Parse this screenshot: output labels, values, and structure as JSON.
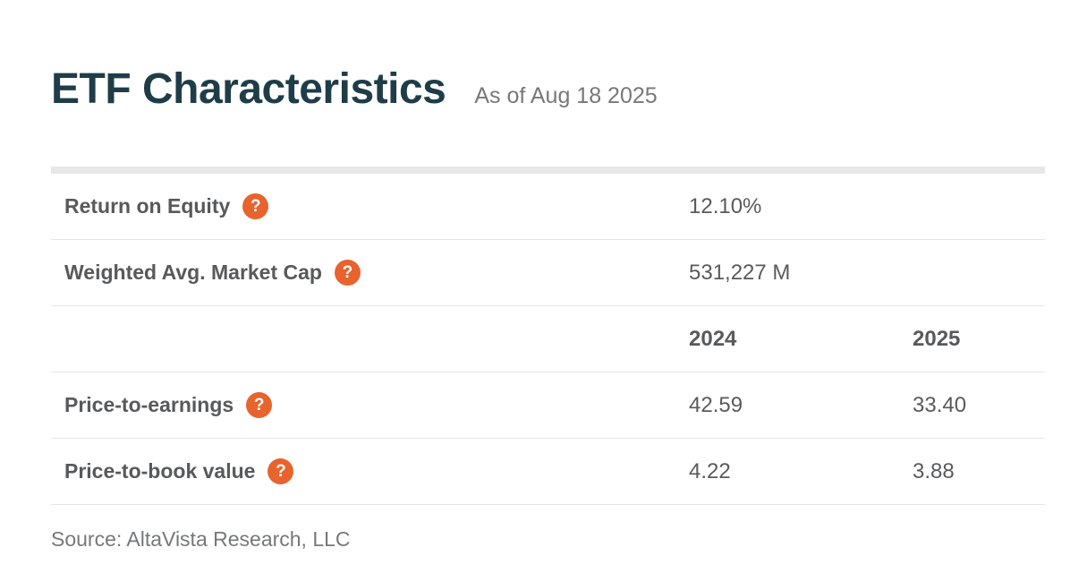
{
  "page": {
    "title": "ETF Characteristics",
    "as_of": "As of Aug 18 2025",
    "source": "Source: AltaVista Research, LLC"
  },
  "colors": {
    "title_text": "#1e3d48",
    "label_text": "#58595b",
    "value_text": "#595a5c",
    "muted_text": "#76787a",
    "accent_orange": "#e8632d",
    "divider": "#e5e5e5",
    "top_bar": "#e7e7e7"
  },
  "icons": {
    "help_glyph": "?"
  },
  "table": {
    "single_value_rows": [
      {
        "label": "Return on Equity",
        "value": "12.10%"
      },
      {
        "label": "Weighted Avg. Market Cap",
        "value": "531,227 M"
      }
    ],
    "year_headers": [
      "2024",
      "2025"
    ],
    "year_rows": [
      {
        "label": "Price-to-earnings",
        "values": [
          "42.59",
          "33.40"
        ]
      },
      {
        "label": "Price-to-book value",
        "values": [
          "4.22",
          "3.88"
        ]
      }
    ]
  }
}
